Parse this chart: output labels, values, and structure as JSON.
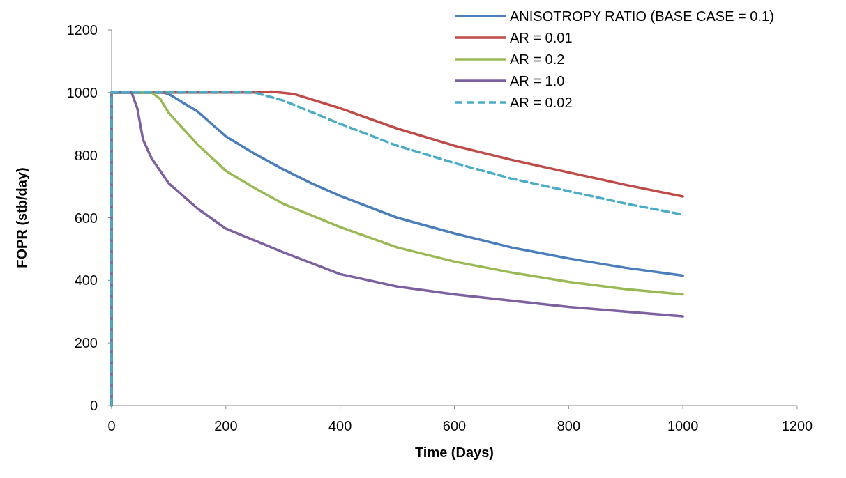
{
  "chart_data": {
    "type": "line",
    "xlabel": "Time (Days)",
    "ylabel": "FOPR (stb/day)",
    "xlim": [
      0,
      1200
    ],
    "xticks": [
      0,
      200,
      400,
      600,
      800,
      1000,
      1200
    ],
    "ylim": [
      0,
      1200
    ],
    "yticks": [
      0,
      200,
      400,
      600,
      800,
      1000,
      1200
    ],
    "grid": false,
    "legend": "top right",
    "marker": "none",
    "series": [
      {
        "name": "ANISOTROPY RATIO (BASE CASE = 0.1)",
        "color": "#4a7ebb",
        "line_style": "solid",
        "x": [
          0,
          0,
          90,
          100,
          150,
          200,
          250,
          300,
          350,
          400,
          500,
          600,
          700,
          800,
          900,
          1000
        ],
        "values": [
          0,
          1000,
          1000,
          995,
          940,
          860,
          805,
          755,
          710,
          670,
          600,
          550,
          505,
          470,
          440,
          415
        ]
      },
      {
        "name": "AR = 0.01",
        "color": "#be4b48",
        "line_style": "solid",
        "x": [
          0,
          0,
          250,
          280,
          320,
          400,
          500,
          600,
          700,
          800,
          900,
          1000
        ],
        "values": [
          0,
          1000,
          1000,
          1003,
          995,
          950,
          885,
          830,
          785,
          745,
          705,
          668
        ]
      },
      {
        "name": "AR = 0.2",
        "color": "#98b954",
        "line_style": "solid",
        "x": [
          0,
          0,
          70,
          85,
          100,
          150,
          200,
          250,
          300,
          400,
          500,
          600,
          700,
          800,
          900,
          1000
        ],
        "values": [
          0,
          1000,
          1000,
          980,
          935,
          835,
          750,
          695,
          645,
          570,
          505,
          460,
          425,
          395,
          372,
          355
        ]
      },
      {
        "name": "AR = 1.0",
        "color": "#7d60a0",
        "line_style": "solid",
        "x": [
          0,
          0,
          35,
          45,
          55,
          70,
          100,
          150,
          200,
          300,
          400,
          500,
          600,
          700,
          800,
          900,
          1000
        ],
        "values": [
          0,
          1000,
          1000,
          950,
          850,
          790,
          710,
          630,
          565,
          490,
          420,
          380,
          355,
          335,
          315,
          300,
          285
        ]
      },
      {
        "name": "AR = 0.02",
        "color": "#4bacc6",
        "line_style": "dashed",
        "x": [
          0,
          0,
          250,
          300,
          400,
          500,
          600,
          700,
          800,
          900,
          1000
        ],
        "values": [
          0,
          1000,
          1000,
          975,
          900,
          830,
          775,
          725,
          685,
          645,
          610
        ]
      }
    ]
  }
}
